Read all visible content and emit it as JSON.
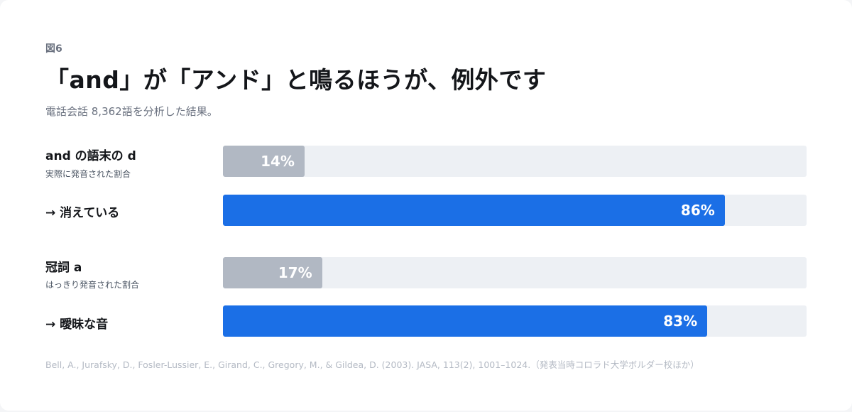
{
  "figure_label": "図6",
  "title": "「and」が「アンド」と鳴るほうが、例外です",
  "subtitle": "電話会話 8,362語を分析した結果。",
  "groups": [
    {
      "label": "and の語末の d",
      "bars": [
        {
          "label": "実際に発音された割合",
          "value": 14,
          "display": "14%",
          "color": "#b1b8c3"
        },
        {
          "label": "→ 消えている",
          "value": 86,
          "display": "86%",
          "color": "#1b6fe6"
        }
      ]
    },
    {
      "label": "冠詞 a",
      "bars": [
        {
          "label": "はっきり発音された割合",
          "value": 17,
          "display": "17%",
          "color": "#b1b8c3"
        },
        {
          "label": "→ 曖昧な音",
          "value": 83,
          "display": "83%",
          "color": "#1b6fe6"
        }
      ]
    }
  ],
  "chart_data": {
    "type": "bar",
    "orientation": "horizontal",
    "categories": [
      "and の語末の d",
      "→ 消えている",
      "冠詞 a",
      "→ 曖昧な音"
    ],
    "values": [
      14,
      86,
      17,
      83
    ],
    "unit": "%",
    "xlim": [
      0,
      100
    ],
    "grid": false,
    "title": "「and」が「アンド」と鳴るほうが、例外です"
  },
  "source": "Bell, A., Jurafsky, D., Fosler-Lussier, E., Girand, C., Gregory, M., & Gildea, D. (2003). JASA, 113(2), 1001–1024.（発表当時コロラド大学ボルダー校ほか）"
}
